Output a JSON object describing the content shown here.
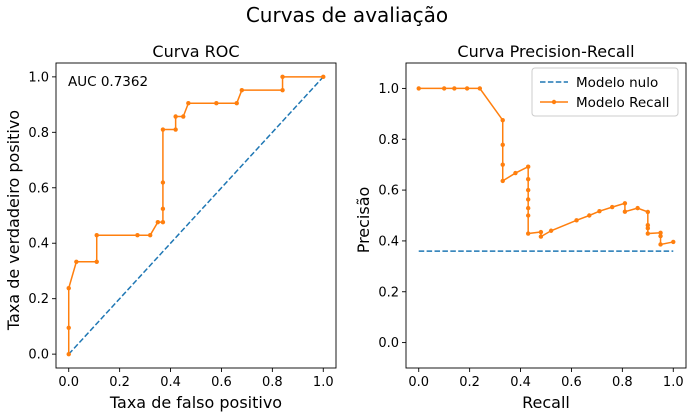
{
  "figure": {
    "suptitle": "Curvas de avaliação"
  },
  "colors": {
    "null_line": "#1f77b4",
    "model_line": "#ff7f0e",
    "axes": "#000000",
    "background": "#ffffff"
  },
  "chart_data": [
    {
      "type": "line",
      "title": "Curva ROC",
      "xlabel": "Taxa de falso positivo",
      "ylabel": "Taxa de verdadeiro positivo",
      "annotation": "AUC 0.7362",
      "xlim": [
        -0.05,
        1.05
      ],
      "ylim": [
        -0.05,
        1.05
      ],
      "xticks": [
        0.0,
        0.2,
        0.4,
        0.6,
        0.8,
        1.0
      ],
      "yticks": [
        0.0,
        0.2,
        0.4,
        0.6,
        0.8,
        1.0
      ],
      "tick_labels_x": [
        "0.0",
        "0.2",
        "0.4",
        "0.6",
        "0.8",
        "1.0"
      ],
      "tick_labels_y": [
        "0.0",
        "0.2",
        "0.4",
        "0.6",
        "0.8",
        "1.0"
      ],
      "grid": false,
      "legend": null,
      "series": [
        {
          "style": "dashed",
          "color": "#1f77b4",
          "x": [
            0,
            1
          ],
          "y": [
            0,
            1
          ]
        },
        {
          "style": "solid-marker",
          "color": "#ff7f0e",
          "x": [
            0.0,
            0.0,
            0.0,
            0.03,
            0.11,
            0.11,
            0.27,
            0.32,
            0.35,
            0.37,
            0.37,
            0.37,
            0.37,
            0.42,
            0.42,
            0.45,
            0.47,
            0.58,
            0.66,
            0.68,
            0.84,
            0.84,
            1.0
          ],
          "y": [
            0.0,
            0.095,
            0.238,
            0.333,
            0.333,
            0.429,
            0.429,
            0.429,
            0.476,
            0.476,
            0.524,
            0.619,
            0.81,
            0.81,
            0.857,
            0.857,
            0.905,
            0.905,
            0.905,
            0.952,
            0.952,
            1.0,
            1.0
          ]
        }
      ]
    },
    {
      "type": "line",
      "title": "Curva Precision-Recall",
      "xlabel": "Recall",
      "ylabel": "Precisão",
      "xlim": [
        -0.05,
        1.05
      ],
      "ylim": [
        -0.1,
        1.1
      ],
      "xticks": [
        0.0,
        0.2,
        0.4,
        0.6,
        0.8,
        1.0
      ],
      "yticks": [
        0.0,
        0.2,
        0.4,
        0.6,
        0.8,
        1.0
      ],
      "tick_labels_x": [
        "0.0",
        "0.2",
        "0.4",
        "0.6",
        "0.8",
        "1.0"
      ],
      "tick_labels_y": [
        "0.0",
        "0.2",
        "0.4",
        "0.6",
        "0.8",
        "1.0"
      ],
      "grid": false,
      "legend": "top-right",
      "series": [
        {
          "name": "Modelo nulo",
          "style": "dashed",
          "color": "#1f77b4",
          "x": [
            0,
            1
          ],
          "y": [
            0.36,
            0.36
          ]
        },
        {
          "name": "Modelo Recall",
          "style": "solid-marker",
          "color": "#ff7f0e",
          "x": [
            0.0,
            0.1,
            0.14,
            0.19,
            0.24,
            0.33,
            0.33,
            0.33,
            0.33,
            0.38,
            0.43,
            0.43,
            0.43,
            0.43,
            0.43,
            0.43,
            0.43,
            0.48,
            0.48,
            0.52,
            0.62,
            0.67,
            0.71,
            0.76,
            0.81,
            0.81,
            0.86,
            0.9,
            0.9,
            0.9,
            0.9,
            0.95,
            0.95,
            0.95,
            1.0
          ],
          "y": [
            1.0,
            1.0,
            1.0,
            1.0,
            1.0,
            0.875,
            0.778,
            0.7,
            0.636,
            0.667,
            0.692,
            0.643,
            0.6,
            0.563,
            0.529,
            0.5,
            0.429,
            0.435,
            0.417,
            0.44,
            0.481,
            0.5,
            0.517,
            0.533,
            0.548,
            0.515,
            0.529,
            0.514,
            0.462,
            0.45,
            0.429,
            0.432,
            0.419,
            0.386,
            0.396
          ]
        }
      ]
    }
  ]
}
